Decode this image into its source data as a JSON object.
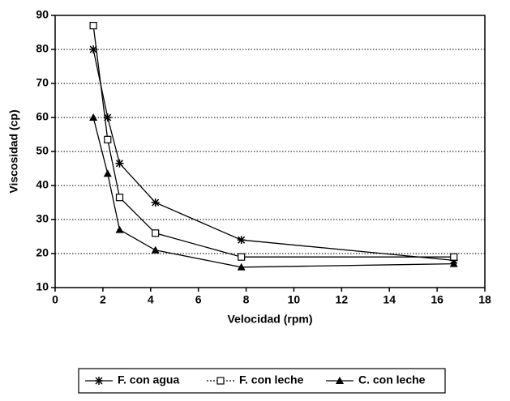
{
  "chart_data": {
    "type": "line",
    "x_label": "Velocidad (rpm)",
    "y_label": "Viscosidad (cp)",
    "x": [
      1.6,
      2.2,
      2.7,
      4.2,
      7.8,
      16.7
    ],
    "series": [
      {
        "name": "F. con agua",
        "color": "#000000",
        "marker": "star",
        "values": [
          80,
          60,
          46.5,
          35,
          24,
          18
        ]
      },
      {
        "name": "F. con leche",
        "color": "#000000",
        "marker": "square",
        "values": [
          87,
          53.5,
          36.5,
          26,
          19,
          19
        ]
      },
      {
        "name": "C. con leche",
        "color": "#000000",
        "marker": "triangle",
        "values": [
          60,
          43.5,
          27,
          21,
          16,
          17
        ]
      }
    ],
    "xlim": [
      0,
      18
    ],
    "xticks": [
      0,
      2,
      4,
      6,
      8,
      10,
      12,
      14,
      16,
      18
    ],
    "ylim": [
      10,
      90
    ],
    "yticks": [
      10,
      20,
      30,
      40,
      50,
      60,
      70,
      80,
      90
    ],
    "grid": true,
    "legend": "bottom"
  }
}
